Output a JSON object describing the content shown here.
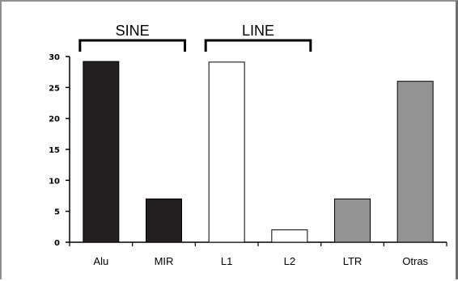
{
  "chart_data": {
    "type": "bar",
    "title": "",
    "xlabel": "",
    "ylabel": "",
    "ylim": [
      0,
      30
    ],
    "yticks": [
      "0",
      "5",
      "10",
      "15",
      "20",
      "25",
      "30"
    ],
    "categories": [
      "Alu",
      "MIR",
      "L1",
      "L2",
      "LTR",
      "Otras"
    ],
    "values": [
      29.2,
      7.0,
      29.1,
      2.0,
      7.0,
      26.0
    ],
    "colors": [
      "#231f20",
      "#231f20",
      "#ffffff",
      "#ffffff",
      "#939393",
      "#939393"
    ],
    "groups": [
      {
        "label": "SINE",
        "categories": [
          "Alu",
          "MIR"
        ]
      },
      {
        "label": "LINE",
        "categories": [
          "L1",
          "L2"
        ]
      }
    ],
    "grid": false,
    "legend": "none"
  }
}
